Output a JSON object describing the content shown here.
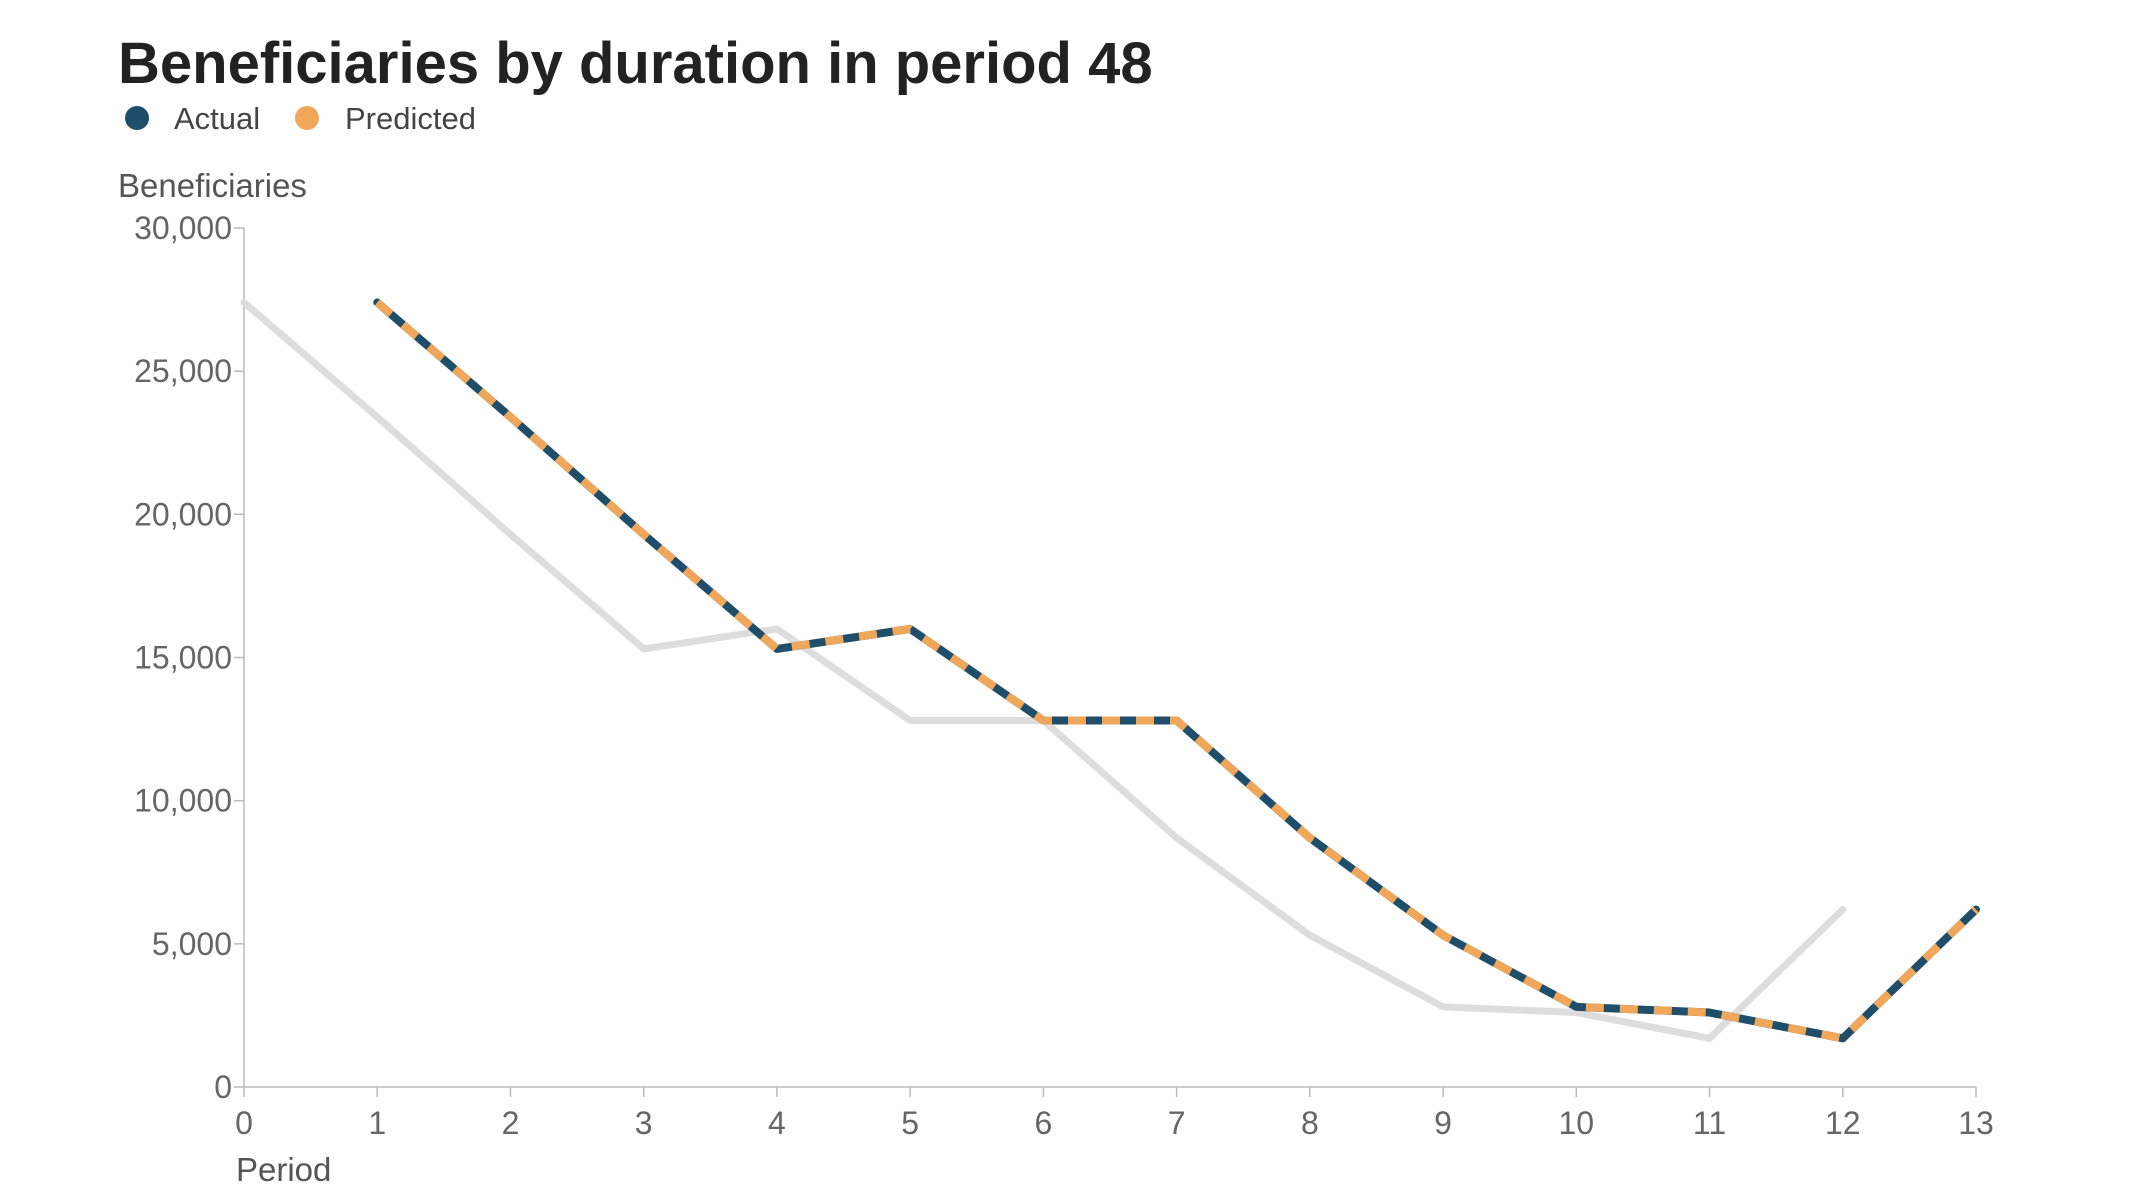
{
  "chart_data": {
    "type": "line",
    "title": "Beneficiaries by duration in period 48",
    "xlabel": "Period",
    "ylabel": "Beneficiaries",
    "xlim": [
      0,
      13
    ],
    "ylim": [
      0,
      30000
    ],
    "x_ticks": [
      "0",
      "1",
      "2",
      "3",
      "4",
      "5",
      "6",
      "7",
      "8",
      "9",
      "10",
      "11",
      "12",
      "13"
    ],
    "y_ticks": [
      "0",
      "5,000",
      "10,000",
      "15,000",
      "20,000",
      "25,000",
      "30,000"
    ],
    "y_tick_values": [
      0,
      5000,
      10000,
      15000,
      20000,
      25000,
      30000
    ],
    "grid": false,
    "legend_position": "top-left",
    "series": [
      {
        "name": "Actual",
        "color": "#1f4e6b",
        "x": [
          1,
          2,
          3,
          4,
          5,
          6,
          7,
          8,
          9,
          10,
          11,
          12,
          13
        ],
        "values": [
          27400,
          23400,
          19300,
          15300,
          16000,
          12800,
          12800,
          8700,
          5300,
          2800,
          2600,
          1700,
          6200
        ]
      },
      {
        "name": "Predicted",
        "color": "#f0a75a",
        "style": "dashed",
        "x": [
          1,
          2,
          3,
          4,
          5,
          6,
          7,
          8,
          9,
          10,
          11,
          12,
          13
        ],
        "values": [
          27400,
          23400,
          19300,
          15300,
          16000,
          12800,
          12800,
          8700,
          5300,
          2800,
          2600,
          1700,
          6200
        ]
      },
      {
        "color": "#dddddd",
        "x": [
          0,
          1,
          2,
          3,
          4,
          5,
          6,
          7,
          8,
          9,
          10,
          11,
          12
        ],
        "values": [
          27400,
          23400,
          19300,
          15300,
          16000,
          12800,
          12800,
          8700,
          5300,
          2800,
          2600,
          1700,
          6200
        ]
      }
    ]
  }
}
